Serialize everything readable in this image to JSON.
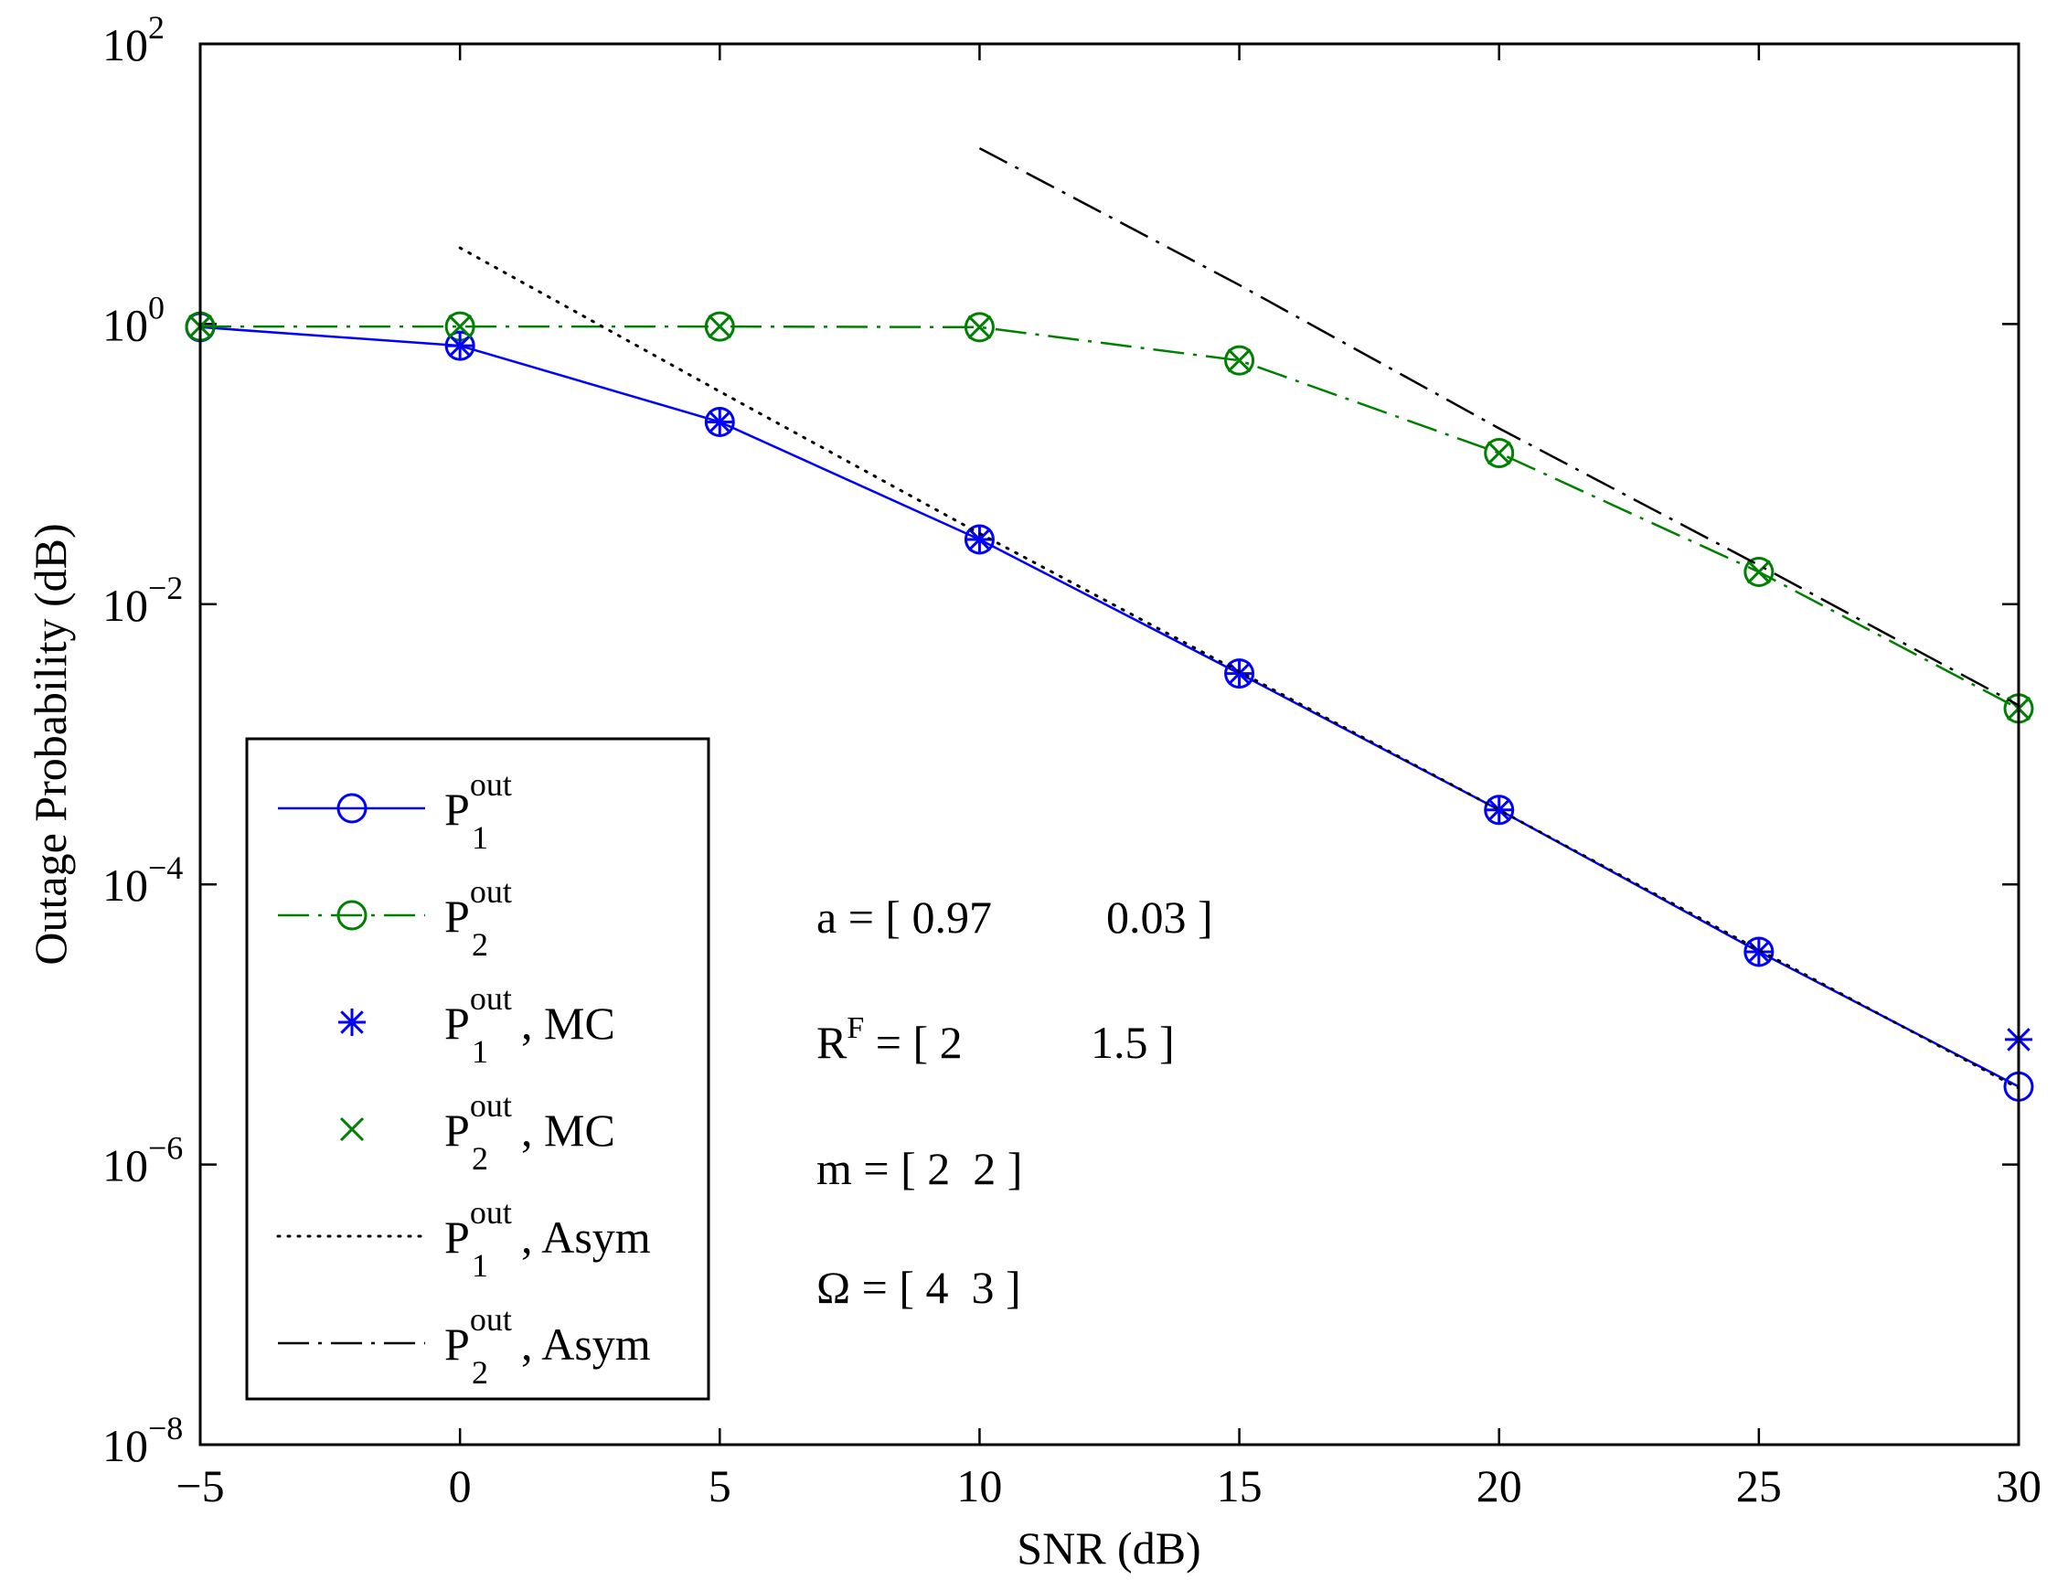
{
  "chart_data": {
    "type": "line",
    "title": "",
    "xlabel": "SNR (dB)",
    "ylabel": "Outage Probability (dB)",
    "xlim": [
      -5,
      30
    ],
    "ylim_exponent": [
      -8,
      2
    ],
    "yscale": "log",
    "x_ticks": [
      "−5",
      "0",
      "5",
      "10",
      "15",
      "20",
      "25",
      "30"
    ],
    "x_tick_values": [
      -5,
      0,
      5,
      10,
      15,
      20,
      25,
      30
    ],
    "y_tick_exponents": [
      2,
      0,
      -2,
      -4,
      -6,
      -8
    ],
    "y_tick_base": "10",
    "y_tick_exp_labels": [
      "2",
      "0",
      "−2",
      "−4",
      "−6",
      "−8"
    ],
    "series": [
      {
        "name": "P1 out",
        "label_main": "P",
        "label_sub": "1",
        "label_sup": "out",
        "label_suffix": "",
        "color": "#0000ff",
        "style": "solid",
        "marker": "circle",
        "x": [
          -5,
          0,
          5,
          10,
          15,
          20,
          25,
          30
        ],
        "y": [
          0.95,
          0.7,
          0.2,
          0.029,
          0.0032,
          0.00034,
          3.3e-05,
          3.6e-06
        ]
      },
      {
        "name": "P2 out",
        "label_main": "P",
        "label_sub": "2",
        "label_sup": "out",
        "label_suffix": "",
        "color": "#008000",
        "style": "dashdot",
        "marker": "circle",
        "x": [
          -5,
          0,
          5,
          10,
          15,
          20,
          25,
          30
        ],
        "y": [
          0.96,
          0.96,
          0.96,
          0.95,
          0.55,
          0.12,
          0.017,
          0.0018
        ]
      },
      {
        "name": "P1 out, MC",
        "label_main": "P",
        "label_sub": "1",
        "label_sup": "out",
        "label_suffix": ", MC",
        "color": "#0000ff",
        "style": "none",
        "marker": "star",
        "x": [
          0,
          5,
          10,
          15,
          20,
          25,
          30
        ],
        "y": [
          0.7,
          0.2,
          0.029,
          0.0032,
          0.00034,
          3.3e-05,
          7.8e-06
        ]
      },
      {
        "name": "P2 out, MC",
        "label_main": "P",
        "label_sub": "2",
        "label_sup": "out",
        "label_suffix": ", MC",
        "color": "#008000",
        "style": "none",
        "marker": "x",
        "x": [
          -5,
          0,
          5,
          10,
          15,
          20,
          25,
          30
        ],
        "y": [
          0.96,
          0.96,
          0.96,
          0.95,
          0.55,
          0.12,
          0.017,
          0.0018
        ]
      },
      {
        "name": "P1 out, Asym",
        "label_main": "P",
        "label_sub": "1",
        "label_sup": "out",
        "label_suffix": ", Asym",
        "color": "#000000",
        "style": "dotted",
        "marker": "none",
        "x": [
          0,
          5,
          10,
          15,
          20,
          25,
          30
        ],
        "y": [
          3.5,
          0.33,
          0.032,
          0.0033,
          0.00034,
          3.4e-05,
          3.5e-06
        ]
      },
      {
        "name": "P2 out, Asym",
        "label_main": "P",
        "label_sub": "2",
        "label_sup": "out",
        "label_suffix": ", Asym",
        "color": "#000000",
        "style": "dashdot",
        "marker": "none",
        "x": [
          10,
          15,
          20,
          25,
          30
        ],
        "y": [
          18,
          1.9,
          0.18,
          0.019,
          0.0019
        ]
      }
    ],
    "legend_position": "lower-left",
    "annotations": [
      {
        "id": "a",
        "prefix": "a = [ 0.97",
        "suffix": "0.03 ]"
      },
      {
        "id": "rf",
        "main": "R",
        "sup": "F",
        "prefix": " = [ 2",
        "suffix": "1.5 ]"
      },
      {
        "id": "m",
        "text": "m = [ 2  2 ]"
      },
      {
        "id": "omega",
        "text": "Ω = [ 4  3 ]"
      }
    ]
  }
}
